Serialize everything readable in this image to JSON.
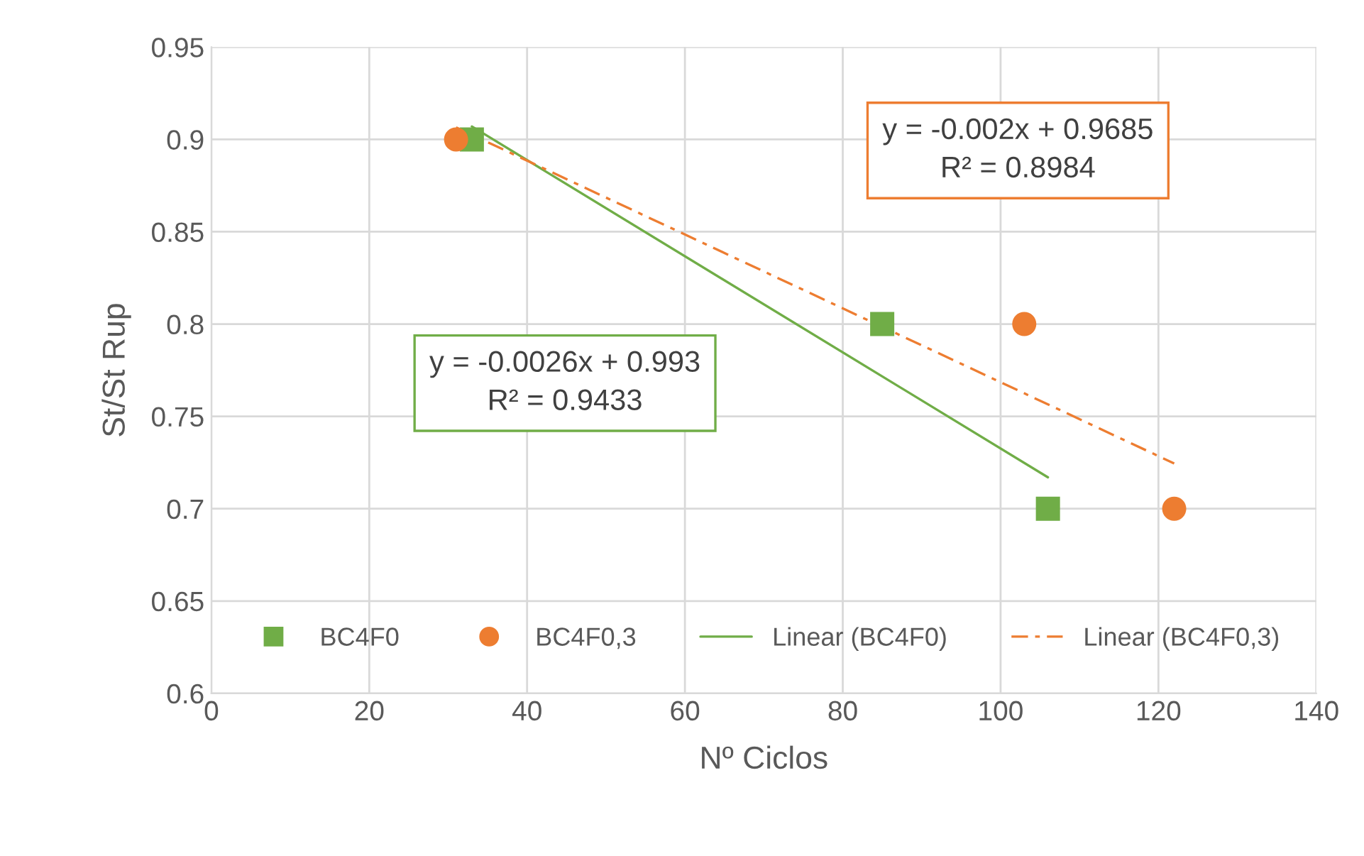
{
  "chart_data": {
    "type": "scatter",
    "xlabel": "Nº Ciclos",
    "ylabel": "St/St Rup",
    "series": [
      {
        "name": "BC4F0",
        "marker": "square",
        "color": "#70ad47",
        "x": [
          33,
          85,
          106
        ],
        "values": [
          0.9,
          0.8,
          0.7
        ]
      },
      {
        "name": "BC4F0,3",
        "marker": "circle",
        "color": "#ed7d31",
        "x": [
          31,
          103,
          122
        ],
        "values": [
          0.9,
          0.8,
          0.7
        ]
      },
      {
        "name": "Linear (BC4F0)",
        "type": "line",
        "line_style": "solid",
        "color": "#70ad47",
        "x": [
          33,
          106
        ],
        "values": [
          0.907,
          0.717
        ]
      },
      {
        "name": "Linear (BC4F0,3)",
        "type": "line",
        "line_style": "dashed",
        "color": "#ed7d31",
        "x": [
          31,
          122
        ],
        "values": [
          0.9065,
          0.7245
        ]
      }
    ],
    "annotations": [
      "y = -0.0026x + 0.993\nR² = 0.9433",
      "y = -0.002x + 0.9685\nR² = 0.8984"
    ],
    "xlim": [
      0,
      140
    ],
    "xticks": [
      0,
      20,
      40,
      60,
      80,
      100,
      120,
      140
    ],
    "ylim": [
      0.6,
      0.95
    ],
    "yticks": [
      0.6,
      0.65,
      0.7,
      0.75,
      0.8,
      0.85,
      0.9,
      0.95
    ],
    "grid": true,
    "legend": "bottom"
  }
}
